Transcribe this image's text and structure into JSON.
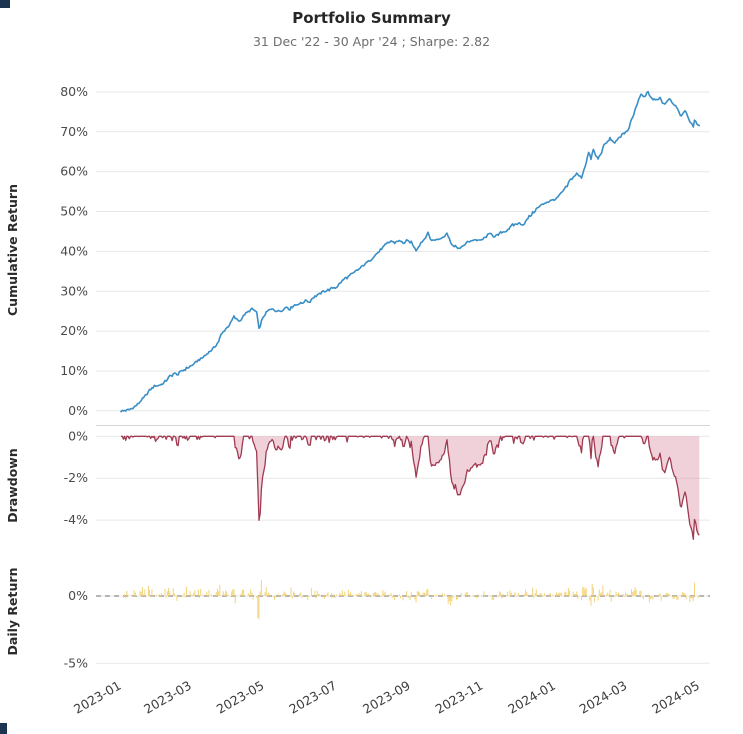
{
  "header": {
    "title": "Portfolio Summary",
    "subtitle": "31 Dec '22 - 30 Apr '24 ;  Sharpe: 2.82",
    "date_range": "31 Dec '22 - 30 Apr '24",
    "sharpe": 2.82
  },
  "artifact_color": "#1b3450",
  "chart_data": {
    "type": "line",
    "title": "Portfolio Summary",
    "subtitle": "31 Dec '22 - 30 Apr '24 ;  Sharpe: 2.82",
    "x_unit": "days_since_2022-12-31",
    "x_domain": [
      -21,
      495
    ],
    "x_ticks": [
      {
        "day": 1,
        "label": "2023-01"
      },
      {
        "day": 60,
        "label": "2023-03"
      },
      {
        "day": 121,
        "label": "2023-05"
      },
      {
        "day": 182,
        "label": "2023-07"
      },
      {
        "day": 244,
        "label": "2023-09"
      },
      {
        "day": 305,
        "label": "2023-11"
      },
      {
        "day": 366,
        "label": "2024-01"
      },
      {
        "day": 426,
        "label": "2024-03"
      },
      {
        "day": 487,
        "label": "2024-05"
      }
    ],
    "grid_color": "#e7e7e7",
    "panels": [
      {
        "id": "cumulative",
        "ylabel": "Cumulative Return",
        "ylim": [
          -2.8,
          83.5
        ],
        "yticks": [
          80,
          70,
          60,
          50,
          40,
          30,
          20,
          10,
          0
        ],
        "tick_suffix": "%",
        "line_color": "#3a8ec6"
      },
      {
        "id": "drawdown",
        "ylabel": "Drawdown",
        "ylim": [
          -5.0,
          0.3
        ],
        "yticks": [
          0,
          -2,
          -4
        ],
        "tick_suffix": "%",
        "line_color": "#a03a50",
        "fill_color": "#d98ba0"
      },
      {
        "id": "daily",
        "ylabel": "Daily Return",
        "ylim": [
          -5.5,
          3.2
        ],
        "yticks": [
          0,
          -5
        ],
        "tick_suffix": "%",
        "bar_color": "#f2cf6b",
        "zero_line_color": "#8a8a8a",
        "zero_line_style": "dashed"
      }
    ],
    "derived_note": "drawdown and daily return panels are derived from the cumulative return series",
    "daily_noise_amp_pct": 0.38,
    "cumulative_return_anchors_pct": [
      [
        0,
        0
      ],
      [
        3,
        0.1
      ],
      [
        8,
        0.4
      ],
      [
        12,
        1.2
      ],
      [
        15,
        2.0
      ],
      [
        19,
        3.2
      ],
      [
        22,
        4.3
      ],
      [
        25,
        5.5
      ],
      [
        28,
        6.2
      ],
      [
        32,
        6.4
      ],
      [
        36,
        7.0
      ],
      [
        41,
        8.6
      ],
      [
        45,
        9.4
      ],
      [
        48,
        9.1
      ],
      [
        51,
        10.0
      ],
      [
        56,
        10.8
      ],
      [
        60,
        11.5
      ],
      [
        65,
        12.6
      ],
      [
        69,
        13.5
      ],
      [
        74,
        14.8
      ],
      [
        79,
        16.0
      ],
      [
        82,
        17.5
      ],
      [
        84,
        19.0
      ],
      [
        88,
        20.5
      ],
      [
        91,
        21.5
      ],
      [
        95,
        23.6
      ],
      [
        98,
        22.8
      ],
      [
        100,
        22.5
      ],
      [
        103,
        23.8
      ],
      [
        105,
        24.5
      ],
      [
        108,
        25.0
      ],
      [
        110,
        25.5
      ],
      [
        114,
        24.9
      ],
      [
        116,
        20.4
      ],
      [
        118,
        22.4
      ],
      [
        121,
        24.3
      ],
      [
        124,
        25.2
      ],
      [
        128,
        25.6
      ],
      [
        131,
        25.0
      ],
      [
        135,
        25.2
      ],
      [
        139,
        26.0
      ],
      [
        142,
        25.6
      ],
      [
        145,
        26.4
      ],
      [
        149,
        26.8
      ],
      [
        152,
        27.1
      ],
      [
        156,
        27.8
      ],
      [
        158,
        27.2
      ],
      [
        161,
        28.4
      ],
      [
        165,
        29.0
      ],
      [
        168,
        29.5
      ],
      [
        171,
        30.1
      ],
      [
        175,
        30.4
      ],
      [
        178,
        30.8
      ],
      [
        182,
        31.2
      ],
      [
        185,
        32.3
      ],
      [
        188,
        33.2
      ],
      [
        191,
        33.6
      ],
      [
        195,
        34.5
      ],
      [
        198,
        35.2
      ],
      [
        201,
        35.7
      ],
      [
        205,
        36.8
      ],
      [
        208,
        37.5
      ],
      [
        213,
        38.8
      ],
      [
        217,
        40.0
      ],
      [
        220,
        41.0
      ],
      [
        222,
        41.6
      ],
      [
        227,
        42.6
      ],
      [
        230,
        42.2
      ],
      [
        233,
        42.8
      ],
      [
        237,
        42.1
      ],
      [
        240,
        42.6
      ],
      [
        244,
        42.4
      ],
      [
        248,
        40.2
      ],
      [
        251,
        41.8
      ],
      [
        255,
        43.2
      ],
      [
        258,
        44.6
      ],
      [
        261,
        42.7
      ],
      [
        264,
        42.9
      ],
      [
        268,
        43.1
      ],
      [
        271,
        43.8
      ],
      [
        274,
        44.6
      ],
      [
        277,
        42.3
      ],
      [
        280,
        41.2
      ],
      [
        283,
        41.0
      ],
      [
        285,
        40.6
      ],
      [
        289,
        41.8
      ],
      [
        293,
        42.6
      ],
      [
        297,
        42.9
      ],
      [
        301,
        42.7
      ],
      [
        305,
        43.2
      ],
      [
        308,
        44.0
      ],
      [
        311,
        44.6
      ],
      [
        314,
        43.6
      ],
      [
        317,
        44.2
      ],
      [
        319,
        44.7
      ],
      [
        322,
        44.9
      ],
      [
        324,
        45.2
      ],
      [
        327,
        46.0
      ],
      [
        329,
        46.6
      ],
      [
        332,
        46.8
      ],
      [
        335,
        47.1
      ],
      [
        338,
        46.6
      ],
      [
        342,
        48.4
      ],
      [
        345,
        49.3
      ],
      [
        349,
        50.6
      ],
      [
        352,
        51.3
      ],
      [
        356,
        52.1
      ],
      [
        360,
        52.6
      ],
      [
        363,
        52.9
      ],
      [
        366,
        53.2
      ],
      [
        369,
        54.3
      ],
      [
        373,
        55.6
      ],
      [
        375,
        56.4
      ],
      [
        377,
        57.6
      ],
      [
        380,
        58.6
      ],
      [
        383,
        59.6
      ],
      [
        385,
        59.0
      ],
      [
        387,
        58.6
      ],
      [
        389,
        60.5
      ],
      [
        391,
        62.3
      ],
      [
        393,
        64.8
      ],
      [
        395,
        63.2
      ],
      [
        397,
        65.6
      ],
      [
        399,
        64.0
      ],
      [
        401,
        63.2
      ],
      [
        404,
        65.0
      ],
      [
        406,
        66.6
      ],
      [
        409,
        67.5
      ],
      [
        411,
        68.4
      ],
      [
        413,
        67.6
      ],
      [
        416,
        67.4
      ],
      [
        418,
        68.2
      ],
      [
        421,
        69.4
      ],
      [
        424,
        69.8
      ],
      [
        426,
        70.2
      ],
      [
        428,
        72.0
      ],
      [
        430,
        73.6
      ],
      [
        433,
        76.4
      ],
      [
        435,
        77.8
      ],
      [
        437,
        79.4
      ],
      [
        439,
        78.6
      ],
      [
        440,
        78.9
      ],
      [
        443,
        79.9
      ],
      [
        445,
        78.8
      ],
      [
        447,
        78.1
      ],
      [
        450,
        78.0
      ],
      [
        453,
        78.6
      ],
      [
        455,
        77.4
      ],
      [
        457,
        77.0
      ],
      [
        459,
        77.9
      ],
      [
        461,
        78.4
      ],
      [
        464,
        77.2
      ],
      [
        466,
        76.4
      ],
      [
        469,
        75.0
      ],
      [
        471,
        73.9
      ],
      [
        474,
        75.4
      ],
      [
        476,
        74.2
      ],
      [
        478,
        72.4
      ],
      [
        481,
        71.5
      ],
      [
        482,
        72.8
      ],
      [
        484,
        72.2
      ],
      [
        485,
        71.4
      ],
      [
        486,
        71.8
      ]
    ]
  }
}
